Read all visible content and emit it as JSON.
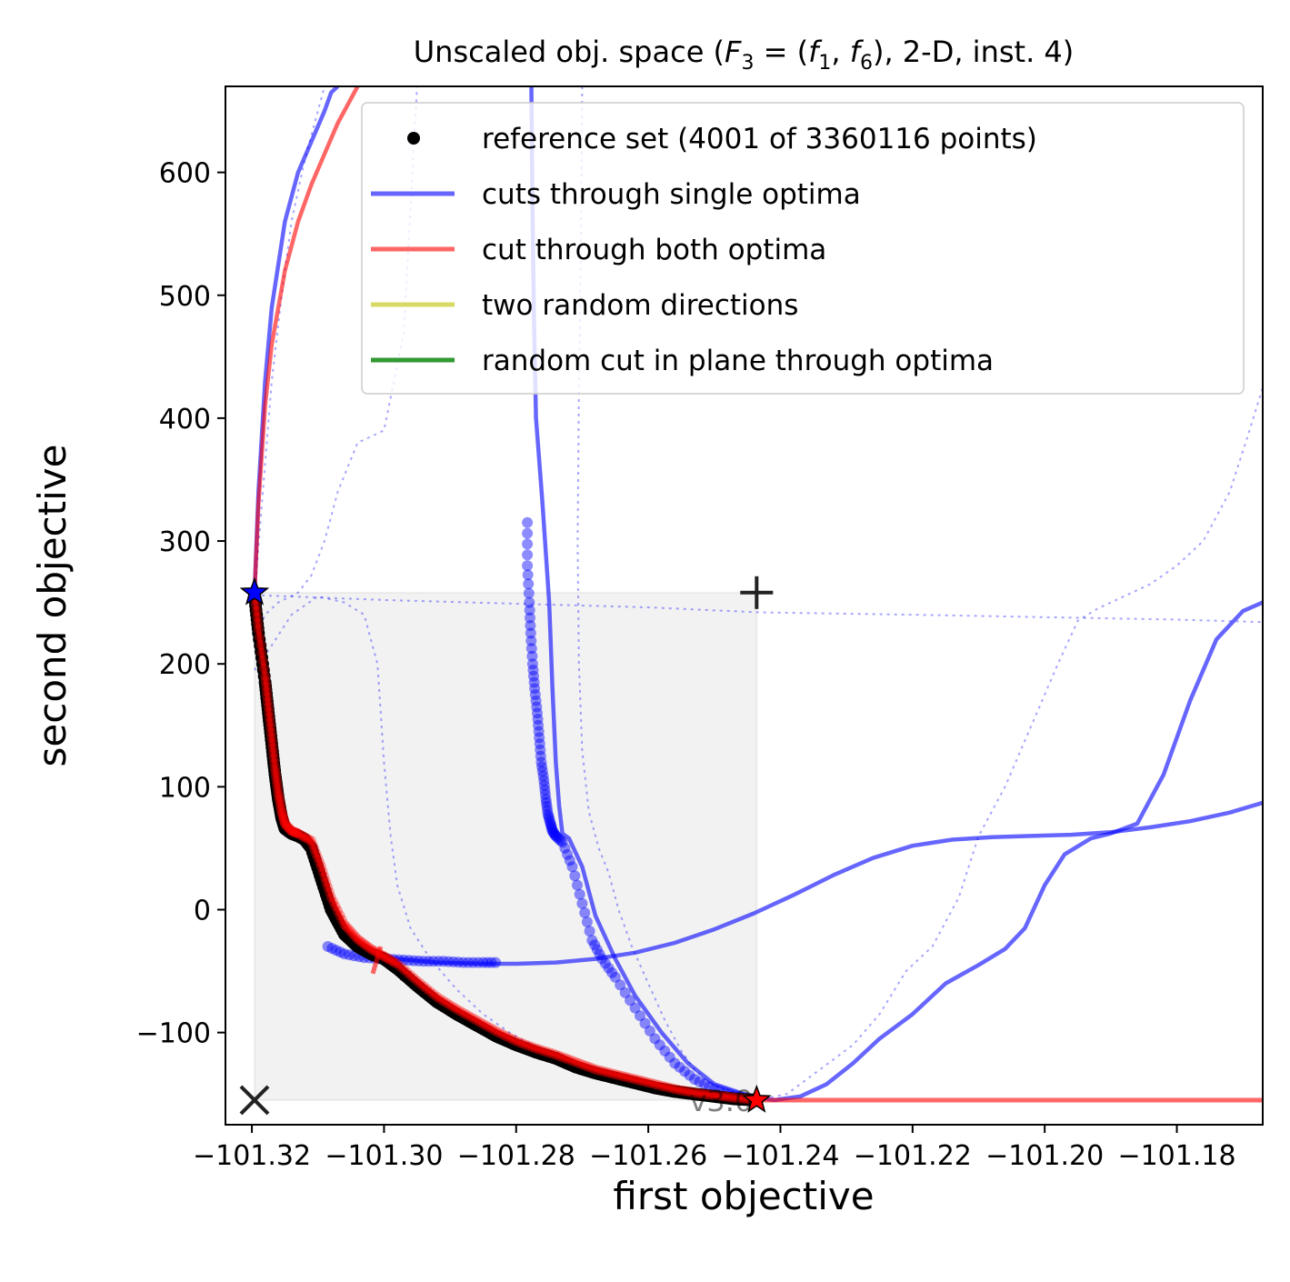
{
  "chart_data": {
    "type": "line",
    "title": "Unscaled obj. space (",
    "title_math": "F",
    "title_math_sub": "3",
    "title_eq": " = (",
    "title_f1": "f",
    "title_f1_sub": "1",
    "title_comma": ", ",
    "title_f6": "f",
    "title_f6_sub": "6",
    "title_tail": "), 2-D, inst. 4)",
    "xlabel": "first objective",
    "ylabel": "second objective",
    "xlim": [
      -101.324,
      -101.167
    ],
    "ylim": [
      -175,
      670
    ],
    "x_ticks": [
      -101.32,
      -101.3,
      -101.28,
      -101.26,
      -101.24,
      -101.22,
      -101.2,
      -101.18
    ],
    "x_tick_labels": [
      "−101.32",
      "−101.30",
      "−101.28",
      "−101.26",
      "−101.24",
      "−101.22",
      "−101.20",
      "−101.18"
    ],
    "y_ticks": [
      -100,
      0,
      100,
      200,
      300,
      400,
      500,
      600
    ],
    "y_tick_labels": [
      "−100",
      "0",
      "100",
      "200",
      "300",
      "400",
      "500",
      "600"
    ],
    "legend_position": "top-right",
    "legend": [
      {
        "label": "reference set (4001 of 3360116 points)",
        "kind": "marker",
        "color": "#000000"
      },
      {
        "label": "cuts through single optima",
        "kind": "line",
        "color": "#0000ff"
      },
      {
        "label": "cut through both optima",
        "kind": "line",
        "color": "#ff0000"
      },
      {
        "label": "two random directions",
        "kind": "line",
        "color": "#bfbf00"
      },
      {
        "label": "random cut in plane through optima",
        "kind": "line",
        "color": "#008000"
      }
    ],
    "watermark": "v3.0",
    "markers": {
      "optimum_1": {
        "x": -101.3196,
        "y": 258
      },
      "optimum_2": {
        "x": -101.2436,
        "y": -155
      },
      "ideal": {
        "x": -101.3196,
        "y": -155
      },
      "nadir": {
        "x": -101.2436,
        "y": 258
      }
    },
    "series": [
      {
        "role": "reference_set",
        "color": "#000000",
        "x": [
          -101.3196,
          -101.319,
          -101.318,
          -101.3175,
          -101.317,
          -101.3165,
          -101.316,
          -101.3155,
          -101.315,
          -101.314,
          -101.313,
          -101.312,
          -101.311,
          -101.3095,
          -101.308,
          -101.306,
          -101.304,
          -101.302,
          -101.3,
          -101.298,
          -101.295,
          -101.292,
          -101.289,
          -101.286,
          -101.283,
          -101.28,
          -101.277,
          -101.274,
          -101.271,
          -101.268,
          -101.265,
          -101.262,
          -101.259,
          -101.256,
          -101.253,
          -101.25,
          -101.247,
          -101.2436
        ],
        "y": [
          255,
          225,
          185,
          160,
          135,
          110,
          90,
          75,
          66,
          62,
          60,
          57,
          50,
          25,
          0,
          -20,
          -30,
          -36,
          -40,
          -48,
          -62,
          -75,
          -85,
          -94,
          -103,
          -110,
          -116,
          -121,
          -128,
          -133,
          -137,
          -141,
          -145,
          -148,
          -150,
          -152,
          -154,
          -155
        ]
      },
      {
        "role": "cut_both_optima_front",
        "color": "#ff0000",
        "x": [
          -101.3196,
          -101.319,
          -101.318,
          -101.3175,
          -101.317,
          -101.3165,
          -101.316,
          -101.3155,
          -101.315,
          -101.314,
          -101.313,
          -101.311,
          -101.3095,
          -101.308,
          -101.306,
          -101.304,
          -101.302,
          -101.3,
          -101.298,
          -101.295,
          -101.292,
          -101.289,
          -101.286,
          -101.283,
          -101.28,
          -101.277,
          -101.274,
          -101.271,
          -101.268,
          -101.265,
          -101.262,
          -101.259,
          -101.256,
          -101.253,
          -101.25,
          -101.247,
          -101.2436,
          -101.167
        ],
        "y": [
          258,
          228,
          190,
          165,
          140,
          115,
          95,
          80,
          70,
          64,
          62,
          56,
          35,
          10,
          -12,
          -24,
          -32,
          -38,
          -44,
          -58,
          -71,
          -81,
          -90,
          -99,
          -107,
          -113,
          -118,
          -124,
          -130,
          -134,
          -138,
          -142,
          -146,
          -149,
          -151,
          -153,
          -155,
          -155
        ]
      },
      {
        "role": "cut_both_optima_upper",
        "color": "#ff0000",
        "x": [
          -101.3196,
          -101.319,
          -101.318,
          -101.317,
          -101.315,
          -101.313,
          -101.311,
          -101.309,
          -101.307,
          -101.305,
          -101.304
        ],
        "y": [
          258,
          330,
          410,
          460,
          520,
          560,
          590,
          615,
          640,
          660,
          670
        ]
      },
      {
        "role": "cut_single_left_up",
        "color": "#0000ff",
        "x": [
          -101.3196,
          -101.319,
          -101.318,
          -101.317,
          -101.315,
          -101.313,
          -101.311,
          -101.309,
          -101.308,
          -101.307
        ],
        "y": [
          258,
          340,
          430,
          490,
          560,
          600,
          625,
          650,
          665,
          670
        ]
      },
      {
        "role": "cut_single_flat",
        "color": "#0000ff",
        "x": [
          -101.302,
          -101.298,
          -101.292,
          -101.285,
          -101.28,
          -101.274,
          -101.268,
          -101.262,
          -101.256,
          -101.25,
          -101.244,
          -101.238,
          -101.232,
          -101.226,
          -101.22,
          -101.214,
          -101.208,
          -101.202,
          -101.196,
          -101.19,
          -101.184,
          -101.178,
          -101.172,
          -101.167
        ],
        "y": [
          -35,
          -40,
          -43,
          -44,
          -44,
          -43,
          -40,
          -35,
          -27,
          -16,
          -3,
          12,
          28,
          42,
          52,
          57,
          59,
          60,
          61,
          63,
          67,
          72,
          79,
          87
        ]
      },
      {
        "role": "cut_single_steep",
        "color": "#0000ff",
        "x": [
          -101.2777,
          -101.2775,
          -101.2773,
          -101.277,
          -101.276,
          -101.275,
          -101.2745,
          -101.274,
          -101.2735,
          -101.273,
          -101.272,
          -101.27,
          -101.268,
          -101.265,
          -101.262,
          -101.258,
          -101.254,
          -101.25,
          -101.2455,
          -101.241,
          -101.237,
          -101.233,
          -101.229,
          -101.225,
          -101.22,
          -101.215,
          -101.21,
          -101.206,
          -101.203,
          -101.2,
          -101.197,
          -101.193,
          -101.19,
          -101.186,
          -101.182,
          -101.178,
          -101.174,
          -101.17,
          -101.167
        ],
        "y": [
          670,
          560,
          480,
          400,
          330,
          250,
          180,
          120,
          85,
          62,
          58,
          35,
          -5,
          -40,
          -70,
          -100,
          -125,
          -142,
          -150,
          -155,
          -152,
          -142,
          -125,
          -105,
          -85,
          -60,
          -45,
          -32,
          -15,
          20,
          45,
          58,
          62,
          70,
          110,
          170,
          220,
          243,
          250
        ]
      },
      {
        "role": "cut_single_dots",
        "color": "#0000ff",
        "x": [
          -101.2783,
          -101.2783,
          -101.278,
          -101.2778,
          -101.2775,
          -101.2772,
          -101.2768,
          -101.2765,
          -101.2762,
          -101.2758,
          -101.2755,
          -101.2752,
          -101.2748,
          -101.2745,
          -101.274,
          -101.273,
          -101.2715,
          -101.27,
          -101.2685,
          -101.267,
          -101.265,
          -101.262,
          -101.259,
          -101.256,
          -101.253,
          -101.25,
          -101.247,
          -101.2445
        ],
        "y": [
          315,
          280,
          250,
          225,
          200,
          180,
          160,
          140,
          120,
          105,
          90,
          78,
          70,
          64,
          60,
          55,
          35,
          5,
          -25,
          -40,
          -55,
          -80,
          -105,
          -125,
          -138,
          -146,
          -151,
          -155
        ]
      },
      {
        "role": "cut_single_flat_dots",
        "color": "#0000ff",
        "x": [
          -101.3085,
          -101.306,
          -101.303,
          -101.3,
          -101.297,
          -101.294,
          -101.291,
          -101.288,
          -101.285,
          -101.2825
        ],
        "y": [
          -30,
          -36,
          -39,
          -40,
          -41,
          -42,
          -42,
          -43,
          -43,
          -43
        ]
      },
      {
        "role": "dotted_cut_horizontal",
        "color": "#0000ff",
        "x": [
          -101.3196,
          -101.3,
          -101.28,
          -101.26,
          -101.2436,
          -101.22,
          -101.2,
          -101.18,
          -101.167
        ],
        "y": [
          256,
          252,
          249,
          246,
          242,
          240,
          238,
          236,
          234
        ]
      },
      {
        "role": "dotted_cut_a",
        "color": "#0000ff",
        "x": [
          -101.3196,
          -101.3185,
          -101.317,
          -101.3155,
          -101.314,
          -101.312,
          -101.31,
          -101.309
        ],
        "y": [
          255,
          330,
          430,
          500,
          560,
          610,
          650,
          670
        ]
      },
      {
        "role": "dotted_cut_b",
        "color": "#0000ff",
        "x": [
          -101.3196,
          -101.318,
          -101.316,
          -101.313,
          -101.311,
          -101.309,
          -101.307,
          -101.304,
          -101.3,
          -101.297,
          -101.295
        ],
        "y": [
          220,
          240,
          250,
          258,
          272,
          300,
          340,
          380,
          390,
          470,
          670
        ]
      },
      {
        "role": "dotted_cut_c",
        "color": "#0000ff",
        "x": [
          -101.3196,
          -101.317,
          -101.314,
          -101.31,
          -101.306,
          -101.303,
          -101.301,
          -101.3,
          -101.299,
          -101.298,
          -101.296,
          -101.293,
          -101.289,
          -101.285,
          -101.281,
          -101.277,
          -101.273,
          -101.27,
          -101.267,
          -101.265,
          -101.262,
          -101.258,
          -101.254,
          -101.25,
          -101.246
        ],
        "y": [
          195,
          215,
          240,
          255,
          250,
          240,
          200,
          120,
          60,
          20,
          -15,
          -40,
          -65,
          -85,
          -100,
          -112,
          -120,
          -125,
          -130,
          -135,
          -140,
          -145,
          -150,
          -152,
          -155
        ]
      },
      {
        "role": "dotted_cut_d",
        "color": "#0000ff",
        "x": [
          -101.27,
          -101.2702,
          -101.2705,
          -101.2707,
          -101.2705,
          -101.27,
          -101.269,
          -101.2675,
          -101.266,
          -101.2645,
          -101.2625,
          -101.26,
          -101.2575,
          -101.255,
          -101.253,
          -101.251,
          -101.2485,
          -101.246,
          -101.244
        ],
        "y": [
          670,
          540,
          420,
          300,
          200,
          130,
          80,
          50,
          30,
          0,
          -30,
          -60,
          -90,
          -115,
          -130,
          -140,
          -147,
          -151,
          -155
        ]
      },
      {
        "role": "dotted_cut_e",
        "color": "#0000ff",
        "x": [
          -101.2436,
          -101.239,
          -101.234,
          -101.229,
          -101.225,
          -101.221,
          -101.217,
          -101.213,
          -101.21,
          -101.206,
          -101.202,
          -101.198,
          -101.195,
          -101.192,
          -101.188,
          -101.184,
          -101.18,
          -101.176,
          -101.172,
          -101.169,
          -101.167
        ],
        "y": [
          -155,
          -150,
          -130,
          -110,
          -85,
          -50,
          -30,
          10,
          60,
          100,
          150,
          200,
          235,
          245,
          255,
          265,
          280,
          300,
          340,
          390,
          425
        ]
      }
    ]
  }
}
